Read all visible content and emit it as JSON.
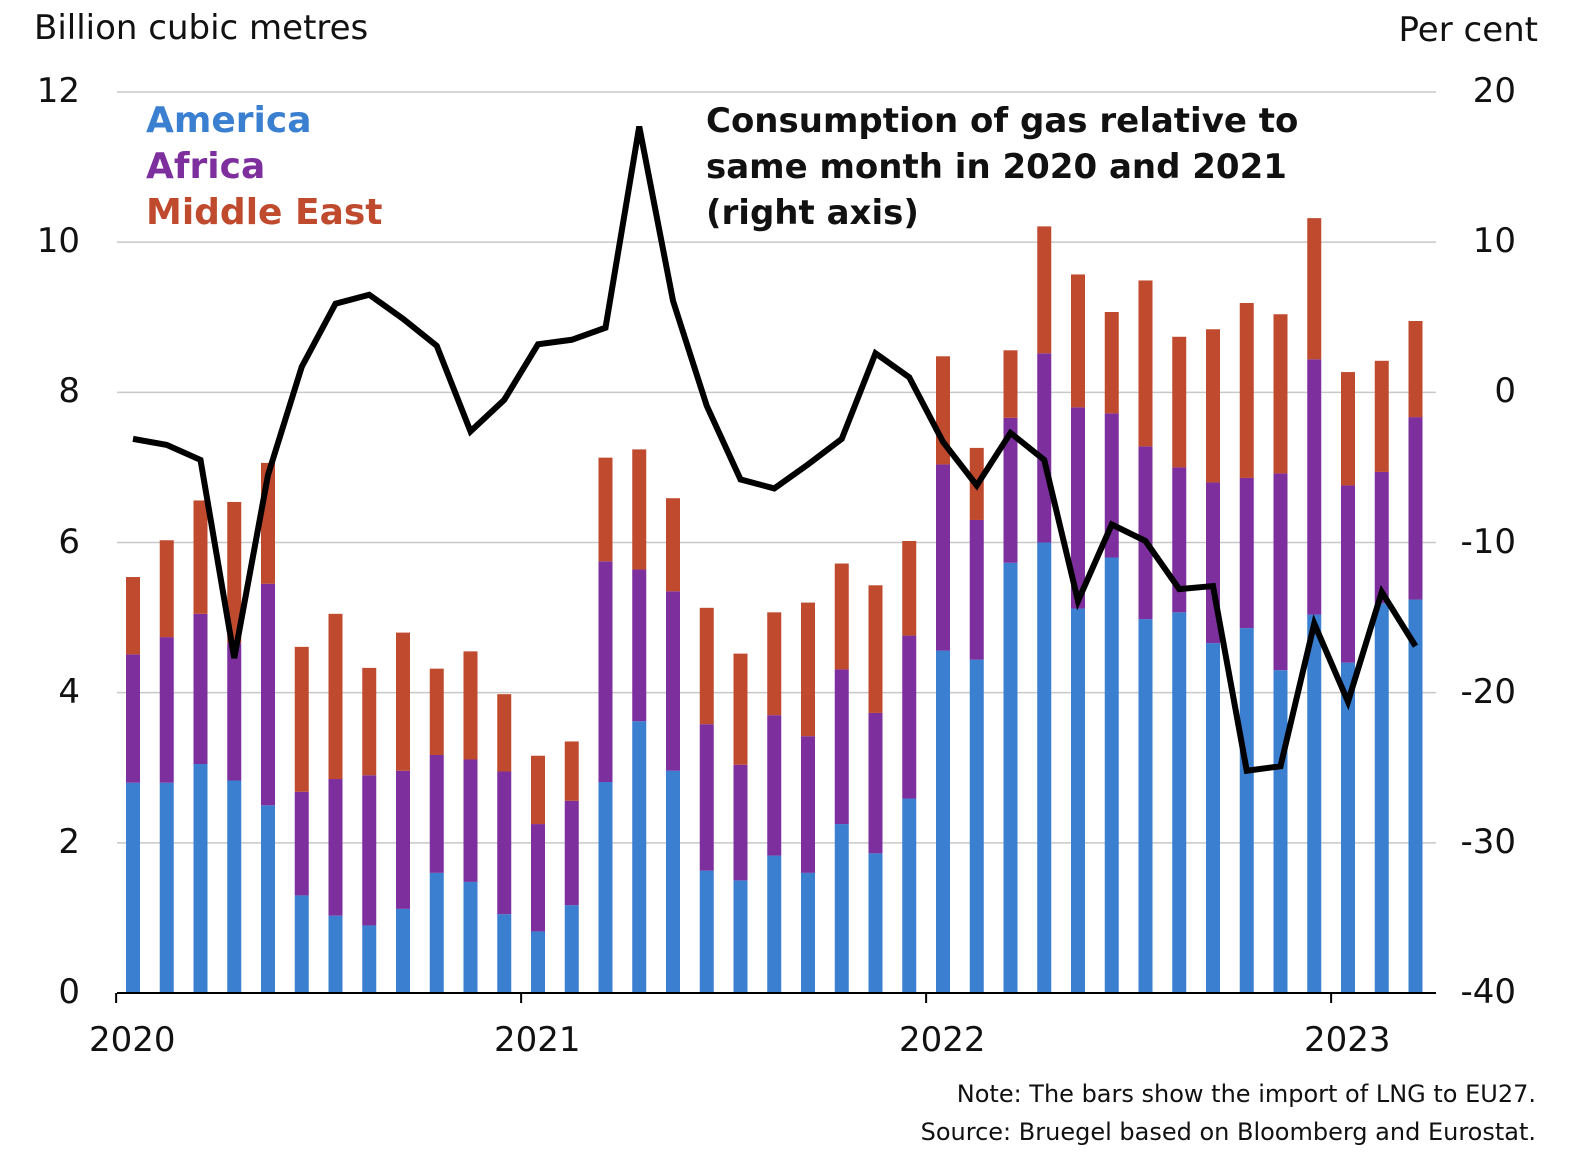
{
  "chart_data": {
    "type": "bar",
    "stacked": true,
    "left_axis": {
      "label": "Billion cubic metres",
      "range": [
        0,
        12
      ],
      "ticks": [
        "0",
        "2",
        "4",
        "6",
        "8",
        "10",
        "12"
      ]
    },
    "right_axis": {
      "label": "Per cent",
      "range": [
        -40,
        20
      ],
      "ticks": [
        "-40",
        "-30",
        "-20",
        "-10",
        "0",
        "10",
        "20"
      ]
    },
    "x_ticks": [
      "2020",
      "2021",
      "2022",
      "2023"
    ],
    "grid": true,
    "legend_position": "top-left",
    "categories": [
      "2020-01",
      "2020-02",
      "2020-03",
      "2020-04",
      "2020-05",
      "2020-06",
      "2020-07",
      "2020-08",
      "2020-09",
      "2020-10",
      "2020-11",
      "2020-12",
      "2021-01",
      "2021-02",
      "2021-03",
      "2021-04",
      "2021-05",
      "2021-06",
      "2021-07",
      "2021-08",
      "2021-09",
      "2021-10",
      "2021-11",
      "2021-12",
      "2022-01",
      "2022-02",
      "2022-03",
      "2022-04",
      "2022-05",
      "2022-06",
      "2022-07",
      "2022-08",
      "2022-09",
      "2022-10",
      "2022-11",
      "2022-12",
      "2023-01",
      "2023-02",
      "2023-03"
    ],
    "series": [
      {
        "name": "America",
        "color": "#3a7fd0",
        "axis": "left",
        "values": [
          2.8,
          2.8,
          3.05,
          2.83,
          2.5,
          1.3,
          1.03,
          0.9,
          1.12,
          1.6,
          1.48,
          1.05,
          0.82,
          1.17,
          2.81,
          3.62,
          2.96,
          1.63,
          1.5,
          1.83,
          1.6,
          2.25,
          1.86,
          2.59,
          4.56,
          4.44,
          5.73,
          6.0,
          5.12,
          5.8,
          4.98,
          5.07,
          4.66,
          4.86,
          4.3,
          5.04,
          4.4,
          5.19,
          5.24
        ]
      },
      {
        "name": "Africa",
        "color": "#7d2f9e",
        "axis": "left",
        "values": [
          1.71,
          1.94,
          2.0,
          1.83,
          2.95,
          1.38,
          1.82,
          2.0,
          1.84,
          1.57,
          1.63,
          1.9,
          1.43,
          1.39,
          2.94,
          2.02,
          2.39,
          1.95,
          1.54,
          1.87,
          1.82,
          2.06,
          1.87,
          2.17,
          2.48,
          1.86,
          1.93,
          2.52,
          2.68,
          1.92,
          2.3,
          1.93,
          2.14,
          2.0,
          2.62,
          3.4,
          2.36,
          1.75,
          2.43
        ]
      },
      {
        "name": "Middle East",
        "color": "#bf4a2e",
        "axis": "left",
        "values": [
          1.03,
          1.29,
          1.51,
          1.88,
          1.61,
          1.93,
          2.2,
          1.43,
          1.84,
          1.15,
          1.44,
          1.03,
          0.91,
          0.79,
          1.38,
          1.6,
          1.24,
          1.55,
          1.48,
          1.37,
          1.78,
          1.41,
          1.7,
          1.26,
          1.44,
          0.96,
          0.9,
          1.69,
          1.77,
          1.35,
          2.21,
          1.74,
          2.04,
          2.33,
          2.12,
          1.88,
          1.51,
          1.48,
          1.28
        ]
      },
      {
        "name": "Consumption of gas relative to same month in 2020 and 2021 (right axis)",
        "color": "#000000",
        "axis": "right",
        "type": "line",
        "values": [
          -3.1,
          -3.5,
          -4.5,
          -17.7,
          -5.5,
          1.7,
          5.9,
          6.5,
          4.9,
          3.1,
          -2.6,
          -0.5,
          3.2,
          3.5,
          4.3,
          17.7,
          6.1,
          -0.9,
          -5.8,
          -6.4,
          -4.8,
          -3.1,
          2.6,
          1.0,
          -3.3,
          -6.2,
          -2.7,
          -4.5,
          -13.9,
          -8.8,
          -9.9,
          -13.1,
          -12.9,
          -25.2,
          -24.9,
          -15.4,
          -20.6,
          -13.3,
          -16.9
        ]
      }
    ]
  },
  "annotation": {
    "line1": "Consumption of gas relative to",
    "line2": "same month in 2020 and 2021",
    "line3": "(right axis)"
  },
  "note": "Note: The bars show the import of LNG to EU27.",
  "source": "Source: Bruegel based on Bloomberg and Eurostat."
}
